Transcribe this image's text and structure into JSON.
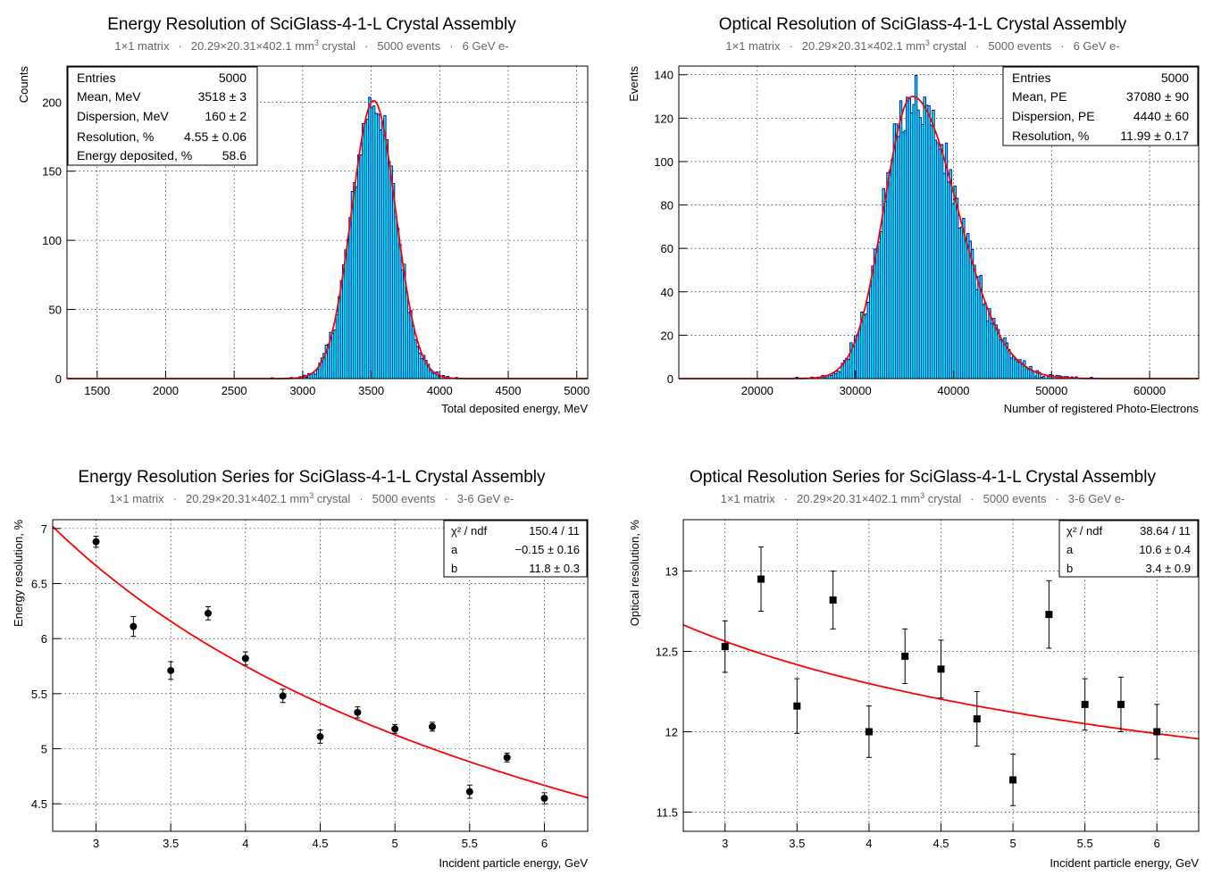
{
  "chart_data": [
    {
      "type": "histogram",
      "title": "Energy Resolution of SciGlass-4-1-L Crystal Assembly",
      "subtitle": {
        "matrix": "1×1 matrix",
        "crystal_pre": "20.29×20.31×402.1 mm",
        "crystal_sup": "3",
        "crystal_post": " crystal",
        "events": "5000 events",
        "beam": "6 GeV e-",
        "sep": "·"
      },
      "xlabel": "Total deposited energy, MeV",
      "ylabel": "Counts",
      "xlim": [
        1280,
        5080
      ],
      "ylim": [
        0,
        226
      ],
      "xticks": [
        1500,
        2000,
        2500,
        3000,
        3500,
        4000,
        4500,
        5000
      ],
      "yticks": [
        0,
        50,
        100,
        150,
        200
      ],
      "grid": true,
      "fill_color": "#00ffff",
      "line_color": "#000099",
      "fit_color": "#ff0000",
      "fit": {
        "model": "gaussian",
        "mean": 3518,
        "sigma": 160,
        "amplitude": 201
      },
      "counts_sample": [
        [
          3100,
          12
        ],
        [
          3200,
          27
        ],
        [
          3300,
          55
        ],
        [
          3400,
          120
        ],
        [
          3450,
          150
        ],
        [
          3500,
          196
        ],
        [
          3530,
          216
        ],
        [
          3560,
          212
        ],
        [
          3600,
          180
        ],
        [
          3650,
          160
        ],
        [
          3700,
          95
        ],
        [
          3750,
          70
        ],
        [
          3800,
          38
        ],
        [
          3850,
          20
        ],
        [
          3900,
          6
        ]
      ],
      "stats": {
        "placement": "top-left",
        "rows": [
          {
            "label": "Entries",
            "value": "5000"
          },
          {
            "label": "Mean, MeV",
            "value": "3518 ± 3"
          },
          {
            "label": "Dispersion, MeV",
            "value": "160 ± 2"
          },
          {
            "label": "Resolution, %",
            "value": "4.55 ± 0.06"
          },
          {
            "label": "Energy deposited, %",
            "value": "58.6"
          }
        ]
      }
    },
    {
      "type": "histogram",
      "title": "Optical Resolution of SciGlass-4-1-L Crystal Assembly",
      "subtitle": {
        "matrix": "1×1 matrix",
        "crystal_pre": "20.29×20.31×402.1 mm",
        "crystal_sup": "3",
        "crystal_post": " crystal",
        "events": "5000 events",
        "beam": "6 GeV e-",
        "sep": "·"
      },
      "xlabel": "Number of registered Photo-Electrons",
      "ylabel": "Events",
      "xlim": [
        12000,
        65000
      ],
      "ylim": [
        0,
        144
      ],
      "xticks": [
        20000,
        30000,
        40000,
        50000,
        60000
      ],
      "yticks": [
        0,
        20,
        40,
        60,
        80,
        100,
        120,
        140
      ],
      "grid": true,
      "fill_color": "#00ffff",
      "line_color": "#000099",
      "fit_color": "#ff0000",
      "fit": {
        "model": "asymmetric-gaussian",
        "mean": 35800,
        "sigma_left": 2900,
        "sigma_right": 4600,
        "amplitude": 130
      },
      "counts_sample": [
        [
          29000,
          8
        ],
        [
          31000,
          30
        ],
        [
          33000,
          75
        ],
        [
          34500,
          115
        ],
        [
          35500,
          132
        ],
        [
          36200,
          137
        ],
        [
          37000,
          128
        ],
        [
          38500,
          105
        ],
        [
          40000,
          75
        ],
        [
          42000,
          40
        ],
        [
          44000,
          22
        ],
        [
          46000,
          14
        ],
        [
          48000,
          8
        ],
        [
          52000,
          4
        ],
        [
          56000,
          2
        ]
      ],
      "stats": {
        "placement": "top-right",
        "rows": [
          {
            "label": "Entries",
            "value": "5000"
          },
          {
            "label": "Mean, PE",
            "value": "37080 ± 90"
          },
          {
            "label": "Dispersion, PE",
            "value": "4440 ± 60"
          },
          {
            "label": "Resolution, %",
            "value": "11.99 ± 0.17"
          }
        ]
      }
    },
    {
      "type": "scatter",
      "title": "Energy Resolution Series for SciGlass-4-1-L  Crystal Assembly",
      "subtitle": {
        "matrix": "1×1 matrix",
        "crystal_pre": "20.29×20.31×402.1 mm",
        "crystal_sup": "3",
        "crystal_post": " crystal",
        "events": "5000 events",
        "beam": "3-6 GeV e-",
        "sep": "·"
      },
      "xlabel": "Incident particle energy, GeV",
      "ylabel": "Energy resolution, %",
      "xlim": [
        2.71,
        6.29
      ],
      "ylim": [
        4.25,
        7.08
      ],
      "xticks": [
        3,
        3.5,
        4,
        4.5,
        5,
        5.5,
        6
      ],
      "xticklabels": [
        "3",
        "3.5",
        "4",
        "4.5",
        "5",
        "5.5",
        "6"
      ],
      "yticks": [
        4.5,
        5,
        5.5,
        6,
        6.5,
        7
      ],
      "yticklabels": [
        "4.5",
        "5",
        "5.5",
        "6",
        "6.5",
        "7"
      ],
      "grid": true,
      "marker": "circle",
      "fit": {
        "model": "a + b/sqrt(E)",
        "a": -0.15,
        "b": 11.8,
        "color": "#ff0000"
      },
      "points": [
        {
          "x": 3.0,
          "y": 6.88,
          "err": 0.05
        },
        {
          "x": 3.25,
          "y": 6.11,
          "err": 0.09
        },
        {
          "x": 3.5,
          "y": 5.71,
          "err": 0.08
        },
        {
          "x": 3.75,
          "y": 6.23,
          "err": 0.06
        },
        {
          "x": 4.0,
          "y": 5.82,
          "err": 0.06
        },
        {
          "x": 4.25,
          "y": 5.48,
          "err": 0.06
        },
        {
          "x": 4.5,
          "y": 5.11,
          "err": 0.06
        },
        {
          "x": 4.75,
          "y": 5.33,
          "err": 0.05
        },
        {
          "x": 5.0,
          "y": 5.18,
          "err": 0.04
        },
        {
          "x": 5.25,
          "y": 5.2,
          "err": 0.04
        },
        {
          "x": 5.5,
          "y": 4.61,
          "err": 0.06
        },
        {
          "x": 5.75,
          "y": 4.92,
          "err": 0.04
        },
        {
          "x": 6.0,
          "y": 4.55,
          "err": 0.05
        }
      ],
      "stats": {
        "placement": "top-right",
        "rows": [
          {
            "label": "χ² / ndf",
            "value": "150.4 / 11"
          },
          {
            "label": "a",
            "value": "−0.15 ± 0.16"
          },
          {
            "label": "b",
            "value": "11.8 ± 0.3"
          }
        ]
      }
    },
    {
      "type": "scatter",
      "title": "Optical Resolution Series for SciGlass-4-1-L  Crystal Assembly",
      "subtitle": {
        "matrix": "1×1 matrix",
        "crystal_pre": "20.29×20.31×402.1 mm",
        "crystal_sup": "3",
        "crystal_post": " crystal",
        "events": "5000 events",
        "beam": "3-6 GeV e-",
        "sep": "·"
      },
      "xlabel": "Incident particle energy, GeV",
      "ylabel": "Optical resolution, %",
      "xlim": [
        2.71,
        6.29
      ],
      "ylim": [
        11.38,
        13.32
      ],
      "xticks": [
        3,
        3.5,
        4,
        4.5,
        5,
        5.5,
        6
      ],
      "xticklabels": [
        "3",
        "3.5",
        "4",
        "4.5",
        "5",
        "5.5",
        "6"
      ],
      "yticks": [
        11.5,
        12,
        12.5,
        13
      ],
      "yticklabels": [
        "11.5",
        "12",
        "12.5",
        "13"
      ],
      "grid": true,
      "marker": "square",
      "fit": {
        "model": "a + b/sqrt(E)",
        "a": 10.6,
        "b": 3.4,
        "color": "#ff0000"
      },
      "points": [
        {
          "x": 3.0,
          "y": 12.53,
          "err": 0.16
        },
        {
          "x": 3.25,
          "y": 12.95,
          "err": 0.2
        },
        {
          "x": 3.5,
          "y": 12.16,
          "err": 0.17
        },
        {
          "x": 3.75,
          "y": 12.82,
          "err": 0.18
        },
        {
          "x": 4.0,
          "y": 12.0,
          "err": 0.16
        },
        {
          "x": 4.25,
          "y": 12.47,
          "err": 0.17
        },
        {
          "x": 4.5,
          "y": 12.39,
          "err": 0.18
        },
        {
          "x": 4.75,
          "y": 12.08,
          "err": 0.17
        },
        {
          "x": 5.0,
          "y": 11.7,
          "err": 0.16
        },
        {
          "x": 5.25,
          "y": 12.73,
          "err": 0.21
        },
        {
          "x": 5.5,
          "y": 12.17,
          "err": 0.16
        },
        {
          "x": 5.75,
          "y": 12.17,
          "err": 0.17
        },
        {
          "x": 6.0,
          "y": 12.0,
          "err": 0.17
        }
      ],
      "stats": {
        "placement": "top-right",
        "rows": [
          {
            "label": "χ² / ndf",
            "value": "38.64 / 11"
          },
          {
            "label": "a",
            "value": "10.6 ± 0.4"
          },
          {
            "label": "b",
            "value": "3.4 ± 0.9"
          }
        ]
      }
    }
  ]
}
